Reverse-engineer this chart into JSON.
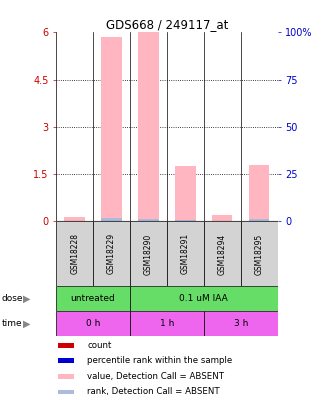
{
  "title": "GDS668 / 249117_at",
  "samples": [
    "GSM18228",
    "GSM18229",
    "GSM18290",
    "GSM18291",
    "GSM18294",
    "GSM18295"
  ],
  "pink_values": [
    0.15,
    5.85,
    6.0,
    1.75,
    0.2,
    1.8
  ],
  "blue_ranks": [
    0.0,
    0.12,
    0.08,
    0.05,
    0.0,
    0.07
  ],
  "ylim_left": [
    0,
    6
  ],
  "ylim_right": [
    0,
    100
  ],
  "yticks_left": [
    0,
    1.5,
    3.0,
    4.5,
    6.0
  ],
  "yticks_right": [
    0,
    25,
    50,
    75,
    100
  ],
  "ytick_labels_left": [
    "0",
    "1.5",
    "3",
    "4.5",
    "6"
  ],
  "ytick_labels_right": [
    "0",
    "25",
    "50",
    "75",
    "100%"
  ],
  "dose_spans": [
    [
      0,
      2,
      "untreated"
    ],
    [
      2,
      6,
      "0.1 uM IAA"
    ]
  ],
  "time_spans": [
    [
      0,
      2,
      "0 h"
    ],
    [
      2,
      4,
      "1 h"
    ],
    [
      4,
      6,
      "3 h"
    ]
  ],
  "dose_color": "#66dd66",
  "time_color": "#ee66ee",
  "bar_color_pink": "#ffb6c1",
  "bar_color_blue": "#aabbdd",
  "sample_box_color": "#d3d3d3",
  "left_axis_color": "#cc0000",
  "right_axis_color": "#0000cc",
  "legend_items": [
    {
      "color": "#cc0000",
      "label": "count"
    },
    {
      "color": "#0000cc",
      "label": "percentile rank within the sample"
    },
    {
      "color": "#ffb6c1",
      "label": "value, Detection Call = ABSENT"
    },
    {
      "color": "#aabbdd",
      "label": "rank, Detection Call = ABSENT"
    }
  ]
}
